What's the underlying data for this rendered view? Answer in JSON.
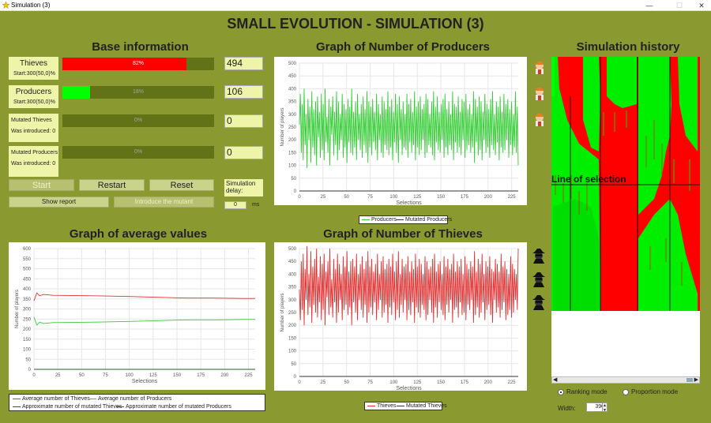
{
  "window": {
    "title": "Simulation (3)",
    "minimize": "—",
    "maximize": "☐",
    "close": "✕"
  },
  "main_title": "SMALL EVOLUTION - SIMULATION (3)",
  "base": {
    "title": "Base information",
    "thieves": {
      "label": "Thieves",
      "start": "Start:300(50,0)%",
      "pct": "82%",
      "fraction": 0.82,
      "value": "494"
    },
    "producers": {
      "label": "Producers",
      "start": "Start:300(50,0)%",
      "pct": "18%",
      "fraction": 0.18,
      "value": "106"
    },
    "mutated_thieves": {
      "label": "Mutated Thieves",
      "intro": "Was introduced: 0",
      "pct": "0%",
      "value": "0"
    },
    "mutated_producers": {
      "label": "Mutated Producers",
      "intro": "Was introduced: 0",
      "pct": "0%",
      "value": "0"
    },
    "start": "Start",
    "restart": "Restart",
    "reset": "Reset",
    "show_report": "Show report",
    "introduce": "Introduce the mutant",
    "delay_label": "Simulation delay:",
    "delay_value": "0",
    "delay_unit": "ms"
  },
  "avg": {
    "title": "Graph of average values",
    "xlabel": "Selections",
    "ylabel": "Number of players",
    "legend": [
      "Average number of Thieves",
      "Average number of Producers",
      "Approximate number of mutated Thieves",
      "Approximate number of mutated Producers"
    ]
  },
  "prod": {
    "title": "Graph of Number of Producers",
    "xlabel": "Selections",
    "ylabel": "Number of players",
    "legend": [
      "Producers",
      "Mutated Producers"
    ]
  },
  "thv": {
    "title": "Graph of Number of Thieves",
    "xlabel": "Selections",
    "ylabel": "Number of players",
    "legend": [
      "Thieves",
      "Mutated Thieves"
    ]
  },
  "history": {
    "title": "Simulation history",
    "line_label": "Line of selection",
    "ranking": "Ranking mode",
    "proportion": "Proportion mode",
    "width_label": "Width:",
    "width_value": "390"
  },
  "chart_data": [
    {
      "type": "line",
      "title": "Graph of average values",
      "xlabel": "Selections",
      "ylabel": "Number of players",
      "xlim": [
        0,
        232
      ],
      "ylim": [
        0,
        600
      ],
      "xticks": [
        0,
        25,
        50,
        75,
        100,
        125,
        150,
        175,
        200,
        225
      ],
      "yticks": [
        0,
        50,
        100,
        150,
        200,
        250,
        300,
        350,
        400,
        450,
        500,
        550,
        600
      ],
      "series": [
        {
          "name": "Average number of Thieves",
          "color": "#e03030",
          "x": [
            0,
            3,
            6,
            10,
            20,
            40,
            70,
            100,
            130,
            160,
            190,
            220,
            232
          ],
          "y": [
            340,
            380,
            365,
            372,
            368,
            367,
            365,
            362,
            358,
            354,
            354,
            352,
            352
          ]
        },
        {
          "name": "Average number of Producers",
          "color": "#33cc33",
          "x": [
            0,
            3,
            6,
            10,
            20,
            40,
            70,
            100,
            130,
            160,
            190,
            220,
            232
          ],
          "y": [
            260,
            220,
            235,
            228,
            232,
            233,
            235,
            238,
            242,
            246,
            246,
            248,
            248
          ]
        },
        {
          "name": "Approximate number of mutated Thieves",
          "color": "#b02020",
          "x": [
            0,
            232
          ],
          "y": [
            0,
            0
          ]
        },
        {
          "name": "Approximate number of mutated Producers",
          "color": "#206020",
          "x": [
            0,
            232
          ],
          "y": [
            0,
            0
          ]
        }
      ]
    },
    {
      "type": "line",
      "title": "Graph of Number of Producers",
      "xlabel": "Selections",
      "ylabel": "Number of players",
      "xlim": [
        0,
        232
      ],
      "ylim": [
        0,
        500
      ],
      "xticks": [
        0,
        25,
        50,
        75,
        100,
        125,
        150,
        175,
        200,
        225
      ],
      "yticks": [
        0,
        50,
        100,
        150,
        200,
        250,
        300,
        350,
        400,
        450,
        500
      ],
      "series": [
        {
          "name": "Producers",
          "color": "#33cc33",
          "y": [
            260,
            380,
            150,
            340,
            120,
            400,
            180,
            300,
            90,
            360,
            200,
            330,
            110,
            390,
            170,
            320,
            140,
            350,
            100,
            370,
            210,
            310,
            130,
            380,
            160,
            340,
            120,
            400,
            190,
            290,
            150,
            360,
            100,
            330,
            220,
            370,
            140,
            310,
            180,
            390,
            120,
            350,
            160,
            300,
            200,
            380,
            130,
            340,
            170,
            320,
            110,
            360,
            190,
            330,
            150,
            400,
            140,
            310,
            170,
            350,
            120,
            380,
            200,
            300,
            160,
            340,
            130,
            370,
            180,
            320,
            150,
            390,
            110,
            350,
            170,
            330,
            140,
            360,
            190,
            310,
            160,
            380,
            120,
            340,
            200,
            300,
            150,
            370,
            130,
            350,
            180,
            320,
            160,
            390,
            140,
            330,
            170,
            360,
            120,
            310,
            190,
            380,
            150,
            340,
            110,
            370,
            200,
            320,
            140,
            350,
            170,
            300,
            160,
            380,
            130,
            340,
            190,
            360,
            150,
            310,
            180,
            390,
            120,
            330,
            170,
            350,
            140,
            370,
            160,
            320,
            200,
            340,
            130,
            380,
            150,
            360,
            180,
            300,
            170,
            350,
            140,
            390,
            120,
            330,
            190,
            370,
            160,
            310,
            150,
            340,
            200,
            360,
            130,
            380,
            170,
            320,
            140,
            350,
            180,
            300,
            160,
            390,
            120,
            340,
            190,
            330,
            150,
            370,
            170,
            310,
            140,
            360,
            200,
            350,
            130,
            380,
            160,
            320,
            180,
            340,
            150,
            300,
            170,
            390,
            110,
            360,
            190,
            330,
            140,
            370,
            160,
            350,
            120,
            310,
            200,
            380,
            150,
            340,
            170,
            320,
            130,
            360,
            180,
            390,
            160,
            300,
            140,
            350,
            190,
            330,
            120,
            370,
            170,
            310,
            150,
            380,
            160,
            340,
            200,
            360,
            130,
            320,
            180,
            350,
            140,
            300,
            170,
            390,
            150,
            330,
            100
          ]
        },
        {
          "name": "Mutated Producers",
          "color": "#333333",
          "y": [
            0,
            0
          ]
        }
      ]
    },
    {
      "type": "line",
      "title": "Graph of Number of Thieves",
      "xlabel": "Selections",
      "ylabel": "Number of players",
      "xlim": [
        0,
        232
      ],
      "ylim": [
        0,
        500
      ],
      "xticks": [
        0,
        25,
        50,
        75,
        100,
        125,
        150,
        175,
        200,
        225
      ],
      "yticks": [
        0,
        50,
        100,
        150,
        200,
        250,
        300,
        350,
        400,
        450,
        500
      ],
      "series": [
        {
          "name": "Thieves",
          "color": "#e03030",
          "y": [
            340,
            220,
            450,
            260,
            480,
            200,
            420,
            300,
            510,
            240,
            400,
            270,
            490,
            210,
            430,
            280,
            460,
            250,
            500,
            230,
            390,
            290,
            470,
            220,
            440,
            260,
            480,
            200,
            410,
            310,
            450,
            240,
            500,
            270,
            380,
            230,
            460,
            290,
            420,
            210,
            480,
            250,
            440,
            300,
            400,
            220,
            470,
            260,
            430,
            280,
            490,
            240,
            410,
            270,
            450,
            200,
            460,
            290,
            430,
            250,
            480,
            220,
            400,
            300,
            440,
            260,
            470,
            230,
            420,
            280,
            450,
            210,
            490,
            250,
            430,
            270,
            460,
            240,
            410,
            290,
            440,
            220,
            480,
            260,
            400,
            300,
            450,
            230,
            470,
            250,
            420,
            280,
            440,
            210,
            460,
            270,
            430,
            240,
            480,
            290,
            410,
            220,
            450,
            260,
            490,
            230,
            400,
            280,
            460,
            250,
            430,
            300,
            440,
            220,
            470,
            260,
            410,
            240,
            450,
            290,
            420,
            210,
            480,
            270,
            430,
            250,
            460,
            230,
            440,
            280,
            400,
            260,
            470,
            220,
            450,
            240,
            420,
            300,
            430,
            250,
            460,
            210,
            480,
            270,
            410,
            230,
            440,
            290,
            450,
            260,
            400,
            240,
            470,
            220,
            430,
            280,
            460,
            250,
            420,
            300,
            440,
            210,
            480,
            260,
            410,
            270,
            450,
            230,
            430,
            290,
            460,
            240,
            400,
            250,
            470,
            220,
            440,
            280,
            420,
            260,
            450,
            300,
            430,
            210,
            490,
            240,
            410,
            270,
            460,
            230,
            440,
            250,
            480,
            290,
            400,
            220,
            450,
            260,
            430,
            280,
            470,
            240,
            420,
            210,
            410,
            300,
            460,
            250,
            440,
            270,
            410,
            230,
            480,
            260,
            430,
            290,
            450,
            220,
            420,
            240,
            400,
            260,
            470,
            230,
            440,
            250,
            420,
            300,
            400,
            260,
            500
          ]
        },
        {
          "name": "Mutated Thieves",
          "color": "#333333",
          "y": [
            0,
            0
          ]
        }
      ]
    }
  ]
}
